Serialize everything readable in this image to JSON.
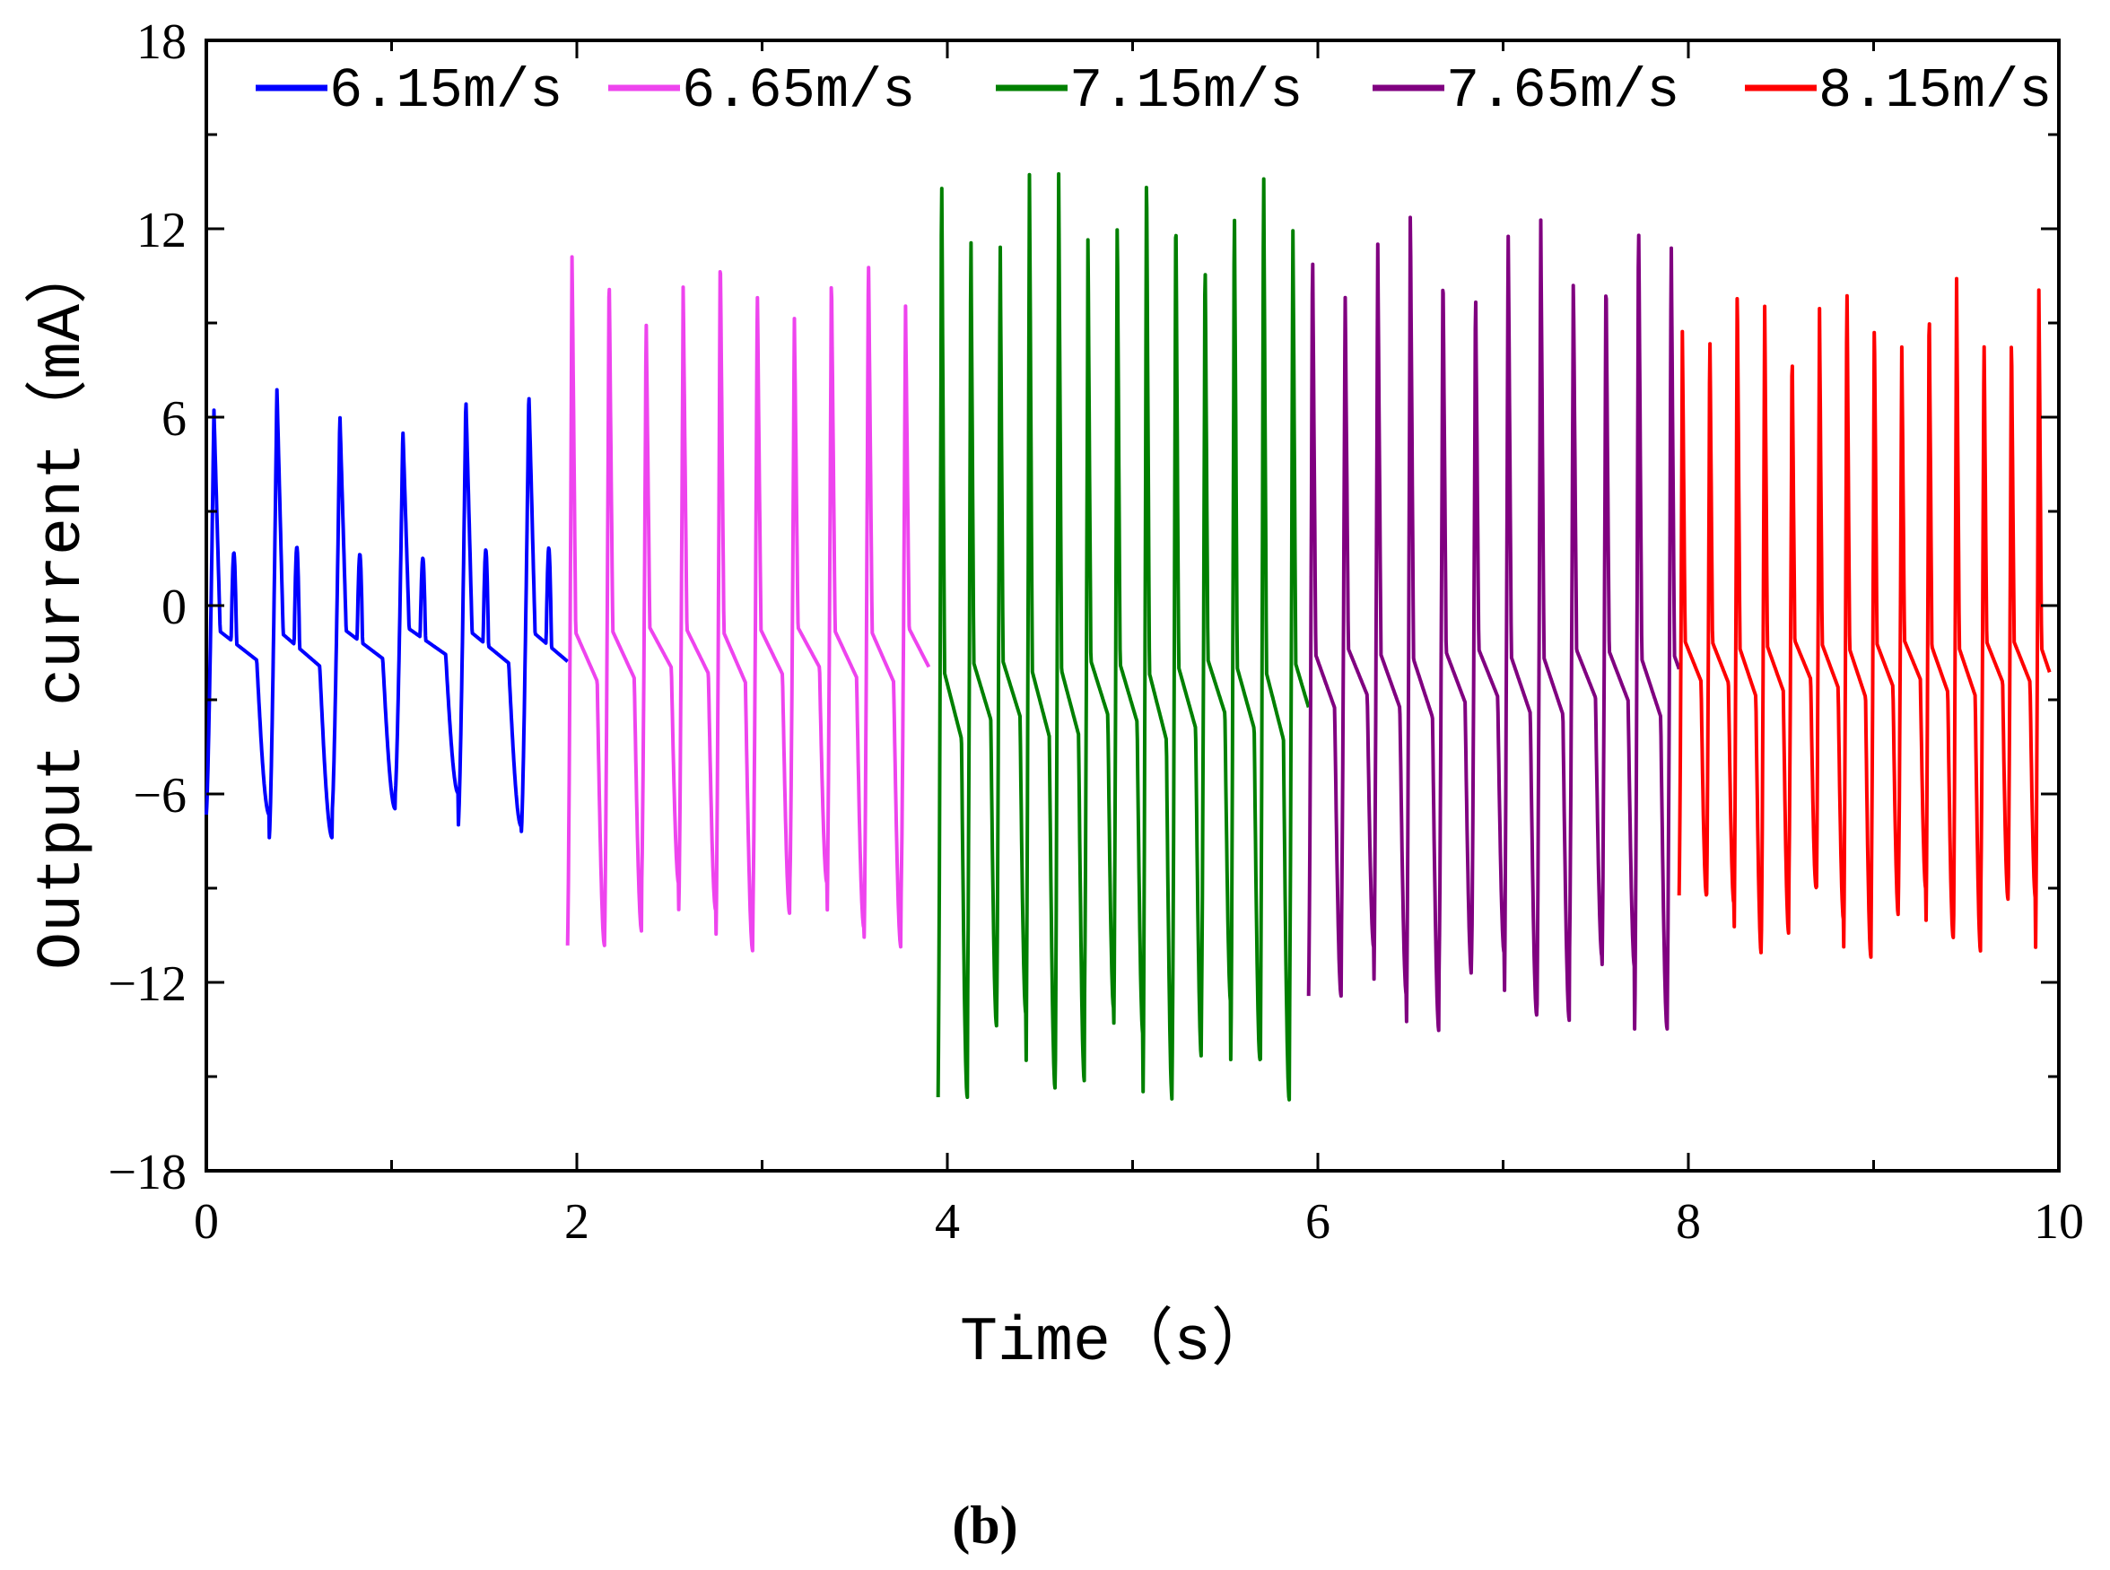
{
  "chart_data": {
    "type": "line",
    "title": "",
    "xlabel": "Time（s）",
    "ylabel": "Output current（mA）",
    "xlim": [
      0,
      10
    ],
    "ylim": [
      -18,
      18
    ],
    "xticks": [
      0,
      2,
      4,
      6,
      8,
      10
    ],
    "yticks": [
      -18,
      -12,
      -6,
      0,
      6,
      12,
      18
    ],
    "grid": false,
    "legend_position": "top",
    "panel_label": "(b)",
    "series": [
      {
        "name": "6.15m/s",
        "color": "#0000ff",
        "x_range": [
          0,
          1.95
        ],
        "period": 0.34,
        "peak": 7.0,
        "trough": -7.4,
        "secondary_peak": 2.6
      },
      {
        "name": "6.65m/s",
        "color": "#ee44ee",
        "x_range": [
          1.95,
          3.9
        ],
        "period": 0.2,
        "peak": 11.5,
        "trough": -11.0
      },
      {
        "name": "7.15m/s",
        "color": "#008000",
        "x_range": [
          3.95,
          5.95
        ],
        "period": 0.158,
        "peak": 14.5,
        "trough": -15.8
      },
      {
        "name": "7.65m/s",
        "color": "#800080",
        "x_range": [
          5.95,
          7.95
        ],
        "period": 0.176,
        "peak": 12.8,
        "trough": -13.6
      },
      {
        "name": "8.15m/s",
        "color": "#ff0000",
        "x_range": [
          7.95,
          9.95
        ],
        "period": 0.148,
        "peak": 10.6,
        "trough": -11.2
      }
    ]
  }
}
